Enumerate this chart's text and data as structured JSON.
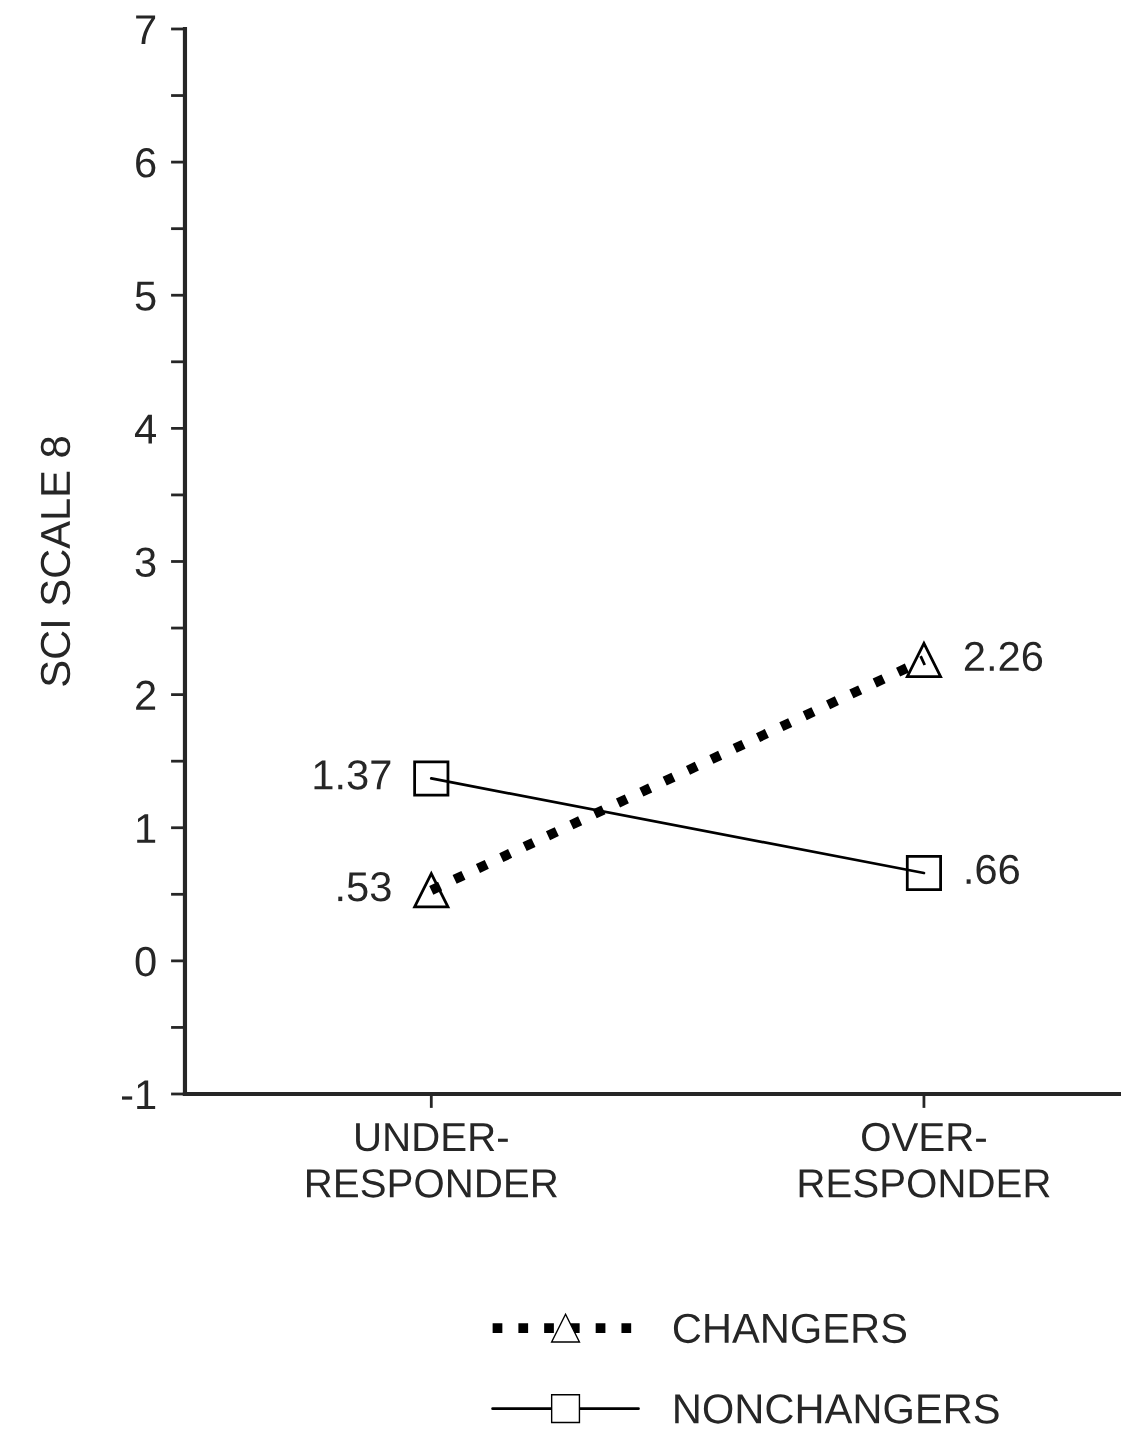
{
  "chart_data": {
    "type": "line",
    "ylabel": "SCI SCALE 8",
    "categories": [
      "UNDER-\nRESPONDER",
      "OVER-\nRESPONDER"
    ],
    "series": [
      {
        "name": "CHANGERS",
        "color": "#000000",
        "values": [
          0.53,
          2.26
        ],
        "value_labels": [
          ".53",
          "2.26"
        ],
        "marker": "triangle",
        "line_style": "dotted"
      },
      {
        "name": "NONCHANGERS",
        "color": "#000000",
        "values": [
          1.37,
          0.66
        ],
        "value_labels": [
          "1.37",
          ".66"
        ],
        "marker": "square",
        "line_style": "solid"
      }
    ],
    "ylim": [
      -1,
      7
    ],
    "yticks": [
      -1,
      {
        "value": -0.5,
        "label": null
      },
      0,
      {
        "value": 0.5,
        "label": null
      },
      1,
      {
        "value": 1.5,
        "label": null
      },
      2,
      {
        "value": 2.5,
        "label": null
      },
      3,
      {
        "value": 3.5,
        "label": null
      },
      4,
      {
        "value": 4.5,
        "label": null
      },
      5,
      {
        "value": 5.5,
        "label": null
      },
      6,
      {
        "value": 6.5,
        "label": null
      },
      7
    ],
    "grid": false,
    "legend": "bottom"
  }
}
